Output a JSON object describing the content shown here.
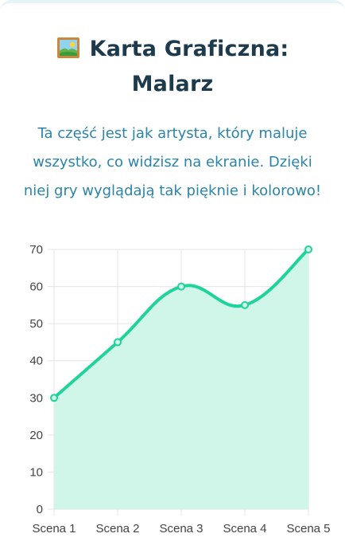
{
  "header": {
    "title": "Karta Graficzna: Malarz",
    "title_icon": "framed-picture-icon",
    "description": "Ta część jest jak artysta, który maluje wszystko, co widzisz na ekranie. Dzięki niej gry wyglądają tak pięknie i kolorowo!"
  },
  "colors": {
    "title": "#1d3b4c",
    "description": "#2b85ab",
    "line": "#20d39a",
    "fill": "#cdf5e8",
    "grid": "#e4e4e4"
  },
  "chart_data": {
    "type": "area",
    "categories": [
      "Scena 1",
      "Scena 2",
      "Scena 3",
      "Scena 4",
      "Scena 5"
    ],
    "series": [
      {
        "values": [
          30,
          45,
          60,
          55,
          70
        ]
      }
    ],
    "ylim": [
      0,
      70
    ],
    "yticks": [
      0,
      10,
      20,
      30,
      40,
      50,
      60,
      70
    ],
    "grid": true,
    "smooth": true
  }
}
